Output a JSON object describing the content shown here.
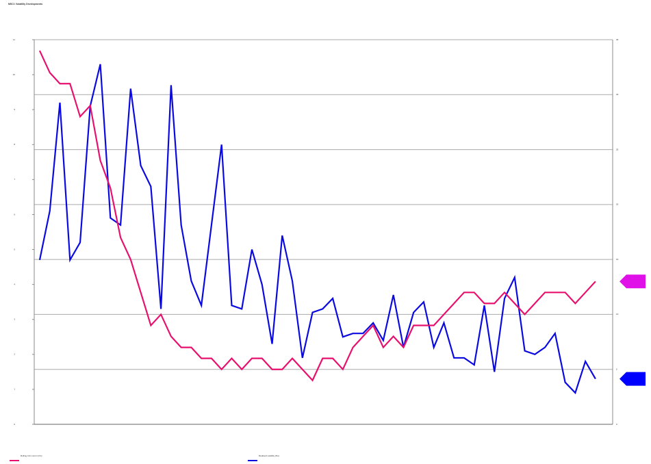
{
  "chart_data": {
    "type": "line",
    "title": "MSCI: Volatility Developments",
    "x": [
      1,
      2,
      3,
      4,
      5,
      6,
      7,
      8,
      9,
      10,
      11,
      12,
      13,
      14,
      15,
      16,
      17,
      18,
      19,
      20,
      21,
      22,
      23,
      24,
      25,
      26,
      27,
      28,
      29,
      30,
      31,
      32,
      33,
      34,
      35,
      36,
      37,
      38,
      39,
      40,
      41,
      42,
      43,
      44,
      45,
      46,
      47,
      48,
      49,
      50,
      51,
      52,
      53,
      54,
      55,
      56
    ],
    "xlim": [
      0.46,
      57.7
    ],
    "series": [
      {
        "name": "Realised volatility (lhs)",
        "color": "#0a0ae0",
        "axis": "y",
        "values": [
          4.7,
          6.1,
          9.2,
          4.7,
          5.2,
          9.1,
          10.3,
          5.9,
          5.7,
          9.6,
          7.4,
          6.8,
          3.3,
          9.7,
          5.7,
          4.1,
          3.4,
          5.7,
          8.0,
          3.4,
          3.3,
          5.0,
          4.0,
          2.3,
          5.4,
          4.1,
          1.9,
          3.2,
          3.3,
          3.6,
          2.5,
          2.6,
          2.6,
          2.9,
          2.4,
          3.7,
          2.2,
          3.2,
          3.5,
          2.2,
          2.9,
          1.9,
          1.9,
          1.7,
          3.4,
          1.5,
          3.6,
          4.2,
          2.1,
          2.0,
          2.2,
          2.6,
          1.2,
          0.9,
          1.8,
          1.3
        ]
      },
      {
        "name": "Rolling 12m return (rhs)",
        "color": "#e8106e",
        "axis": "y2",
        "values": [
          34,
          32,
          31,
          31,
          28,
          29,
          24,
          21.5,
          17,
          15,
          12,
          9,
          10,
          8,
          7,
          7,
          6,
          6,
          5,
          6,
          5,
          6,
          6,
          5,
          5,
          6,
          5,
          4,
          6,
          6,
          5,
          7,
          8,
          9,
          7,
          8,
          7,
          9,
          9,
          9,
          10,
          11,
          12,
          12,
          11,
          11,
          12,
          11,
          10,
          11,
          12,
          12,
          12,
          11,
          12,
          13
        ]
      }
    ],
    "ylim": [
      0,
      11
    ],
    "yticks": [
      0,
      1,
      2,
      3,
      4,
      5,
      6,
      7,
      8,
      9,
      10,
      11
    ],
    "y2lim": [
      0,
      35
    ],
    "y2ticks": [
      0,
      5,
      10,
      15,
      20,
      25,
      30,
      35
    ],
    "grid": true
  }
}
